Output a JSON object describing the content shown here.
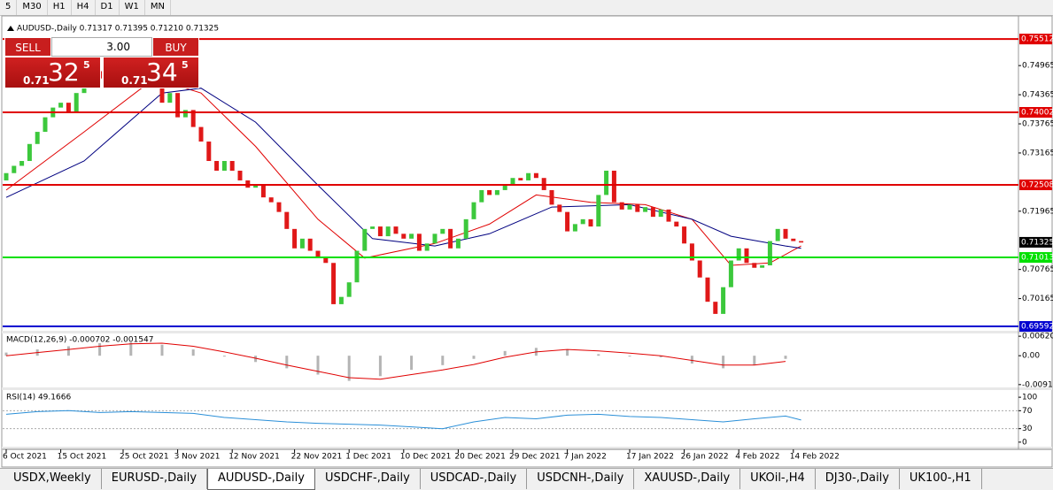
{
  "toolbar": {
    "timeframes": [
      "5",
      "M30",
      "H1",
      "H4",
      "D1",
      "W1",
      "MN"
    ]
  },
  "chart": {
    "header": "AUDUSD-,Daily  0.71317 0.71395 0.71210 0.71325",
    "trade_panel": {
      "sell": "SELL",
      "buy": "BUY",
      "lots": "3.00",
      "sell_price": {
        "big": "0.71",
        "pips": "32",
        "point": "5"
      },
      "buy_price": {
        "big": "0.71",
        "pips": "34",
        "point": "5"
      }
    },
    "price_axis": {
      "ylim": [
        0.6952,
        0.7597
      ],
      "ticks": [
        0.74965,
        0.74365,
        0.73765,
        0.73165,
        0.71965,
        0.70765,
        0.70165
      ]
    },
    "levels": [
      {
        "value": 0.75512,
        "color": "#e00000"
      },
      {
        "value": 0.74002,
        "color": "#e00000"
      },
      {
        "value": 0.72508,
        "color": "#e00000"
      },
      {
        "value": 0.71013,
        "color": "#00e000"
      },
      {
        "value": 0.69592,
        "color": "#0000d0"
      }
    ],
    "current_price": 0.71325,
    "candles": {
      "up_color": "#3cc83c",
      "down_color": "#e01818",
      "open": [
        0.726,
        0.7275,
        0.729,
        0.73,
        0.7335,
        0.736,
        0.739,
        0.741,
        0.742,
        0.74,
        0.744,
        0.746,
        0.7485,
        0.747,
        0.75,
        0.749,
        0.746,
        0.75,
        0.753,
        0.7545,
        0.749,
        0.742,
        0.744,
        0.739,
        0.7405,
        0.737,
        0.734,
        0.73,
        0.728,
        0.73,
        0.728,
        0.726,
        0.7245,
        0.725,
        0.7225,
        0.7215,
        0.7195,
        0.716,
        0.712,
        0.714,
        0.7115,
        0.71,
        0.709,
        0.7005,
        0.702,
        0.705,
        0.7115,
        0.716,
        0.7165,
        0.7145,
        0.7165,
        0.715,
        0.714,
        0.715,
        0.7115,
        0.713,
        0.715,
        0.716,
        0.712,
        0.714,
        0.718,
        0.7215,
        0.724,
        0.723,
        0.724,
        0.725,
        0.7265,
        0.726,
        0.7275,
        0.7265,
        0.724,
        0.721,
        0.7195,
        0.7155,
        0.717,
        0.718,
        0.7165,
        0.723,
        0.728,
        0.7215,
        0.72,
        0.721,
        0.7195,
        0.7205,
        0.7185,
        0.72,
        0.7175,
        0.7165,
        0.713,
        0.7095,
        0.706,
        0.701,
        0.6985,
        0.704,
        0.7095,
        0.712,
        0.709,
        0.708,
        0.7085,
        0.7135,
        0.716,
        0.714,
        0.7135
      ],
      "close": [
        0.7275,
        0.729,
        0.73,
        0.7335,
        0.736,
        0.739,
        0.741,
        0.742,
        0.74,
        0.744,
        0.746,
        0.7485,
        0.747,
        0.75,
        0.749,
        0.746,
        0.75,
        0.753,
        0.7545,
        0.749,
        0.742,
        0.744,
        0.739,
        0.7405,
        0.737,
        0.734,
        0.73,
        0.728,
        0.73,
        0.728,
        0.726,
        0.7245,
        0.725,
        0.7225,
        0.7215,
        0.7195,
        0.716,
        0.712,
        0.714,
        0.7115,
        0.71,
        0.709,
        0.7005,
        0.702,
        0.705,
        0.7115,
        0.716,
        0.7165,
        0.7145,
        0.7165,
        0.715,
        0.714,
        0.715,
        0.7115,
        0.713,
        0.715,
        0.716,
        0.712,
        0.714,
        0.718,
        0.7215,
        0.724,
        0.723,
        0.724,
        0.725,
        0.7265,
        0.726,
        0.7275,
        0.7265,
        0.724,
        0.721,
        0.7195,
        0.7155,
        0.717,
        0.718,
        0.7165,
        0.723,
        0.728,
        0.7215,
        0.72,
        0.721,
        0.7195,
        0.7205,
        0.7185,
        0.72,
        0.7175,
        0.7165,
        0.713,
        0.7095,
        0.706,
        0.701,
        0.6985,
        0.704,
        0.7095,
        0.712,
        0.709,
        0.708,
        0.7085,
        0.7135,
        0.716,
        0.714,
        0.7135,
        0.7132
      ]
    },
    "moving_averages": [
      {
        "color": "#e00000",
        "x": [
          0,
          10,
          19,
          25,
          32,
          40,
          46,
          55,
          62,
          68,
          75,
          82,
          88,
          93,
          98,
          102
        ],
        "values": [
          0.724,
          0.736,
          0.747,
          0.744,
          0.733,
          0.718,
          0.71,
          0.713,
          0.717,
          0.723,
          0.7215,
          0.721,
          0.718,
          0.7085,
          0.709,
          0.7125
        ]
      },
      {
        "color": "#000080",
        "x": [
          0,
          10,
          20,
          25,
          32,
          40,
          47,
          55,
          62,
          70,
          80,
          88,
          93,
          100,
          102
        ],
        "values": [
          0.7225,
          0.73,
          0.744,
          0.745,
          0.738,
          0.725,
          0.714,
          0.7125,
          0.715,
          0.7205,
          0.721,
          0.718,
          0.7145,
          0.7125,
          0.712
        ]
      }
    ],
    "macd": {
      "label": "MACD(12,26,9) -0.000702 -0.001547",
      "ylim": [
        -0.0098,
        0.0068
      ],
      "ticks": [
        0.006201,
        {
          "value": 0,
          "label": "0.00"
        },
        -0.00919
      ],
      "x": [
        0,
        4,
        8,
        12,
        16,
        20,
        24,
        28,
        32,
        36,
        40,
        44,
        48,
        52,
        56,
        60,
        64,
        68,
        72,
        76,
        80,
        84,
        88,
        92,
        96,
        100
      ],
      "histogram": [
        0.001,
        0.002,
        0.003,
        0.004,
        0.0042,
        0.0035,
        0.002,
        0.0,
        -0.002,
        -0.004,
        -0.006,
        -0.008,
        -0.0065,
        -0.0045,
        -0.003,
        -0.001,
        0.0015,
        0.0025,
        0.002,
        0.0005,
        0.0,
        -0.0005,
        -0.0025,
        -0.004,
        -0.003,
        -0.001
      ],
      "signal": [
        0.0,
        0.001,
        0.002,
        0.003,
        0.0038,
        0.004,
        0.003,
        0.0012,
        -0.0008,
        -0.003,
        -0.005,
        -0.007,
        -0.0075,
        -0.006,
        -0.0045,
        -0.0028,
        -0.0005,
        0.0012,
        0.002,
        0.0015,
        0.0008,
        0.0,
        -0.0015,
        -0.003,
        -0.003,
        -0.0018
      ],
      "histogram_color": "#b4b4b4",
      "signal_color": "#e00000"
    },
    "rsi": {
      "label": "RSI(14) 49.1666",
      "ylim": [
        -14,
        114
      ],
      "ticks": [
        100,
        70,
        30,
        0
      ],
      "levels": [
        70,
        30
      ],
      "color": "#2a8fd8",
      "x": [
        0,
        4,
        8,
        12,
        16,
        20,
        24,
        28,
        32,
        36,
        40,
        44,
        48,
        52,
        56,
        60,
        64,
        68,
        72,
        76,
        80,
        84,
        88,
        92,
        96,
        100,
        102
      ],
      "values": [
        62,
        68,
        70,
        66,
        68,
        66,
        64,
        55,
        50,
        45,
        42,
        40,
        38,
        34,
        30,
        45,
        55,
        52,
        60,
        62,
        57,
        55,
        50,
        45,
        52,
        58,
        49.1666
      ]
    },
    "dates": {
      "index": [
        0,
        7,
        15,
        22,
        29,
        37,
        44,
        51,
        58,
        65,
        72,
        80,
        87,
        94,
        101
      ],
      "labels": [
        "6 Oct 2021",
        "15 Oct 2021",
        "25 Oct 2021",
        "3 Nov 2021",
        "12 Nov 2021",
        "22 Nov 2021",
        "1 Dec 2021",
        "10 Dec 2021",
        "20 Dec 2021",
        "29 Dec 2021",
        "7 Jan 2022",
        "17 Jan 2022",
        "26 Jan 2022",
        "4 Feb 2022",
        "14 Feb 2022"
      ]
    }
  },
  "tabs": {
    "items": [
      "USDX,Weekly",
      "EURUSD-,Daily",
      "AUDUSD-,Daily",
      "USDCHF-,Daily",
      "USDCAD-,Daily",
      "USDCNH-,Daily",
      "XAUUSD-,Daily",
      "UKOil-,H4",
      "DJ30-,Daily",
      "UK100-,H1"
    ],
    "active": 2
  }
}
